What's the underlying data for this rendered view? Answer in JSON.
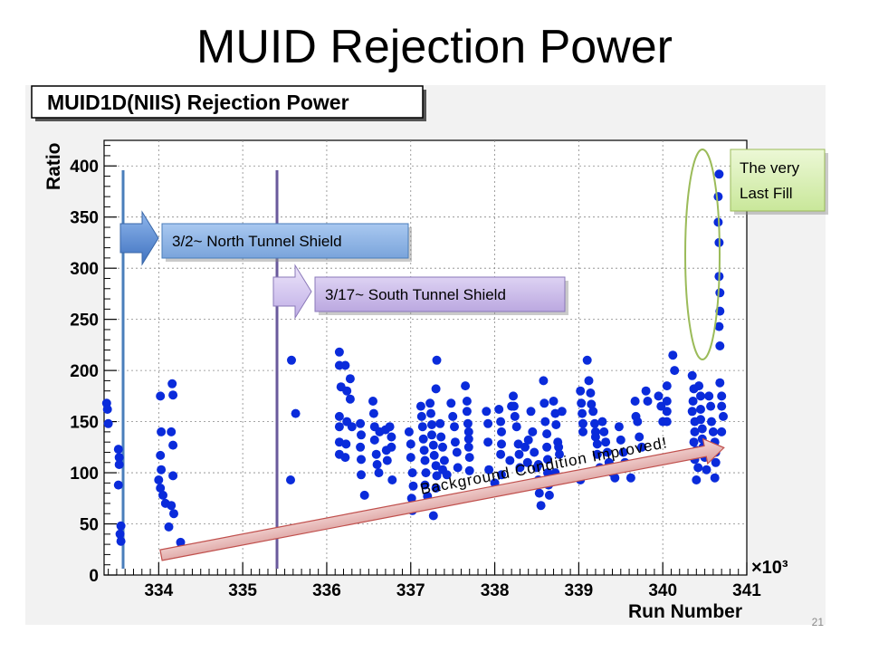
{
  "slide": {
    "title": "MUID Rejection Power",
    "page_number": "21"
  },
  "chart_data": {
    "type": "scatter",
    "title": "MUID1D(NIIS)  Rejection Power",
    "xlabel": "Run Number",
    "ylabel": "Ratio",
    "x_multiplier": "×10³",
    "xlim": [
      333.35,
      341
    ],
    "ylim": [
      0,
      425
    ],
    "x_ticks": [
      334,
      335,
      336,
      337,
      338,
      339,
      340,
      341
    ],
    "y_ticks": [
      0,
      50,
      100,
      150,
      200,
      250,
      300,
      350,
      400
    ],
    "grid": true,
    "marker_color": "#0a2bdb",
    "x_unit_note": "x in thousands of runs",
    "points": [
      [
        333.38,
        168
      ],
      [
        333.39,
        162
      ],
      [
        333.4,
        148
      ],
      [
        333.52,
        123
      ],
      [
        333.53,
        115
      ],
      [
        333.53,
        108
      ],
      [
        333.52,
        88
      ],
      [
        333.55,
        48
      ],
      [
        333.54,
        40
      ],
      [
        333.55,
        33
      ],
      [
        334.02,
        175
      ],
      [
        334.03,
        140
      ],
      [
        334.02,
        117
      ],
      [
        334.03,
        103
      ],
      [
        334.0,
        93
      ],
      [
        334.02,
        85
      ],
      [
        334.05,
        78
      ],
      [
        334.08,
        70
      ],
      [
        334.16,
        187
      ],
      [
        334.17,
        176
      ],
      [
        334.15,
        140
      ],
      [
        334.17,
        127
      ],
      [
        334.17,
        97
      ],
      [
        334.15,
        68
      ],
      [
        334.18,
        60
      ],
      [
        334.12,
        47
      ],
      [
        334.26,
        32
      ],
      [
        334.25,
        25
      ],
      [
        335.58,
        210
      ],
      [
        335.57,
        93
      ],
      [
        335.63,
        158
      ],
      [
        336.15,
        218
      ],
      [
        336.15,
        205
      ],
      [
        336.17,
        184
      ],
      [
        336.15,
        155
      ],
      [
        336.15,
        145
      ],
      [
        336.15,
        130
      ],
      [
        336.15,
        118
      ],
      [
        336.22,
        205
      ],
      [
        336.24,
        180
      ],
      [
        336.24,
        150
      ],
      [
        336.23,
        128
      ],
      [
        336.22,
        115
      ],
      [
        336.28,
        192
      ],
      [
        336.28,
        172
      ],
      [
        336.3,
        145
      ],
      [
        336.4,
        148
      ],
      [
        336.41,
        137
      ],
      [
        336.4,
        125
      ],
      [
        336.41,
        113
      ],
      [
        336.41,
        98
      ],
      [
        336.45,
        78
      ],
      [
        336.55,
        170
      ],
      [
        336.56,
        158
      ],
      [
        336.57,
        145
      ],
      [
        336.57,
        132
      ],
      [
        336.59,
        118
      ],
      [
        336.6,
        108
      ],
      [
        336.62,
        100
      ],
      [
        336.63,
        140
      ],
      [
        336.7,
        142
      ],
      [
        336.71,
        122
      ],
      [
        336.72,
        112
      ],
      [
        336.75,
        145
      ],
      [
        336.77,
        135
      ],
      [
        336.77,
        125
      ],
      [
        336.78,
        93
      ],
      [
        336.98,
        140
      ],
      [
        337.0,
        128
      ],
      [
        337.0,
        115
      ],
      [
        337.02,
        100
      ],
      [
        337.03,
        87
      ],
      [
        337.01,
        75
      ],
      [
        337.02,
        63
      ],
      [
        337.12,
        165
      ],
      [
        337.13,
        155
      ],
      [
        337.14,
        145
      ],
      [
        337.15,
        133
      ],
      [
        337.16,
        122
      ],
      [
        337.17,
        112
      ],
      [
        337.18,
        100
      ],
      [
        337.17,
        88
      ],
      [
        337.2,
        77
      ],
      [
        337.23,
        168
      ],
      [
        337.24,
        158
      ],
      [
        337.25,
        147
      ],
      [
        337.25,
        137
      ],
      [
        337.27,
        127
      ],
      [
        337.28,
        117
      ],
      [
        337.3,
        107
      ],
      [
        337.31,
        97
      ],
      [
        337.3,
        85
      ],
      [
        337.32,
        70
      ],
      [
        337.27,
        58
      ],
      [
        337.3,
        182
      ],
      [
        337.31,
        210
      ],
      [
        337.35,
        148
      ],
      [
        337.36,
        135
      ],
      [
        337.38,
        125
      ],
      [
        337.4,
        112
      ],
      [
        337.38,
        103
      ],
      [
        337.43,
        98
      ],
      [
        337.48,
        168
      ],
      [
        337.5,
        155
      ],
      [
        337.52,
        145
      ],
      [
        337.53,
        130
      ],
      [
        337.55,
        120
      ],
      [
        337.56,
        105
      ],
      [
        337.65,
        185
      ],
      [
        337.67,
        170
      ],
      [
        337.67,
        160
      ],
      [
        337.68,
        148
      ],
      [
        337.69,
        140
      ],
      [
        337.69,
        133
      ],
      [
        337.69,
        125
      ],
      [
        337.7,
        115
      ],
      [
        337.7,
        102
      ],
      [
        337.9,
        160
      ],
      [
        337.92,
        148
      ],
      [
        337.92,
        130
      ],
      [
        337.93,
        103
      ],
      [
        338.0,
        90
      ],
      [
        338.05,
        162
      ],
      [
        338.07,
        150
      ],
      [
        338.08,
        140
      ],
      [
        338.08,
        128
      ],
      [
        338.07,
        118
      ],
      [
        338.08,
        98
      ],
      [
        338.23,
        165
      ],
      [
        338.24,
        155
      ],
      [
        338.26,
        145
      ],
      [
        338.28,
        128
      ],
      [
        338.29,
        118
      ],
      [
        338.3,
        105
      ],
      [
        338.18,
        112
      ],
      [
        338.2,
        165
      ],
      [
        338.22,
        175
      ],
      [
        338.36,
        125
      ],
      [
        338.39,
        110
      ],
      [
        338.4,
        132
      ],
      [
        338.43,
        160
      ],
      [
        338.45,
        140
      ],
      [
        338.47,
        120
      ],
      [
        338.5,
        105
      ],
      [
        338.52,
        108
      ],
      [
        338.52,
        93
      ],
      [
        338.53,
        80
      ],
      [
        338.55,
        68
      ],
      [
        338.58,
        190
      ],
      [
        338.59,
        168
      ],
      [
        338.6,
        150
      ],
      [
        338.62,
        138
      ],
      [
        338.62,
        125
      ],
      [
        338.63,
        113
      ],
      [
        338.63,
        100
      ],
      [
        338.64,
        88
      ],
      [
        338.65,
        78
      ],
      [
        338.7,
        170
      ],
      [
        338.72,
        158
      ],
      [
        338.73,
        147
      ],
      [
        338.75,
        130
      ],
      [
        338.72,
        100
      ],
      [
        338.76,
        125
      ],
      [
        338.77,
        118
      ],
      [
        338.8,
        160
      ],
      [
        338.8,
        95
      ],
      [
        339.02,
        180
      ],
      [
        339.03,
        168
      ],
      [
        339.04,
        158
      ],
      [
        339.05,
        148
      ],
      [
        339.05,
        140
      ],
      [
        339.02,
        93
      ],
      [
        339.1,
        210
      ],
      [
        339.12,
        190
      ],
      [
        339.14,
        178
      ],
      [
        339.15,
        167
      ],
      [
        339.17,
        160
      ],
      [
        339.19,
        148
      ],
      [
        339.2,
        140
      ],
      [
        339.2,
        135
      ],
      [
        339.22,
        128
      ],
      [
        339.22,
        118
      ],
      [
        339.25,
        105
      ],
      [
        339.28,
        150
      ],
      [
        339.3,
        140
      ],
      [
        339.32,
        130
      ],
      [
        339.34,
        120
      ],
      [
        339.36,
        110
      ],
      [
        339.4,
        100
      ],
      [
        339.43,
        95
      ],
      [
        339.48,
        145
      ],
      [
        339.5,
        132
      ],
      [
        339.53,
        120
      ],
      [
        339.55,
        110
      ],
      [
        339.57,
        105
      ],
      [
        339.62,
        95
      ],
      [
        339.67,
        170
      ],
      [
        339.68,
        155
      ],
      [
        339.7,
        150
      ],
      [
        339.72,
        135
      ],
      [
        339.75,
        125
      ],
      [
        339.8,
        180
      ],
      [
        339.82,
        170
      ],
      [
        339.95,
        175
      ],
      [
        339.98,
        165
      ],
      [
        340.0,
        150
      ],
      [
        340.05,
        185
      ],
      [
        340.05,
        170
      ],
      [
        340.05,
        160
      ],
      [
        340.05,
        150
      ],
      [
        340.12,
        215
      ],
      [
        340.14,
        200
      ],
      [
        340.35,
        195
      ],
      [
        340.37,
        182
      ],
      [
        340.36,
        170
      ],
      [
        340.35,
        160
      ],
      [
        340.38,
        150
      ],
      [
        340.38,
        140
      ],
      [
        340.37,
        130
      ],
      [
        340.4,
        122
      ],
      [
        340.38,
        113
      ],
      [
        340.42,
        105
      ],
      [
        340.4,
        93
      ],
      [
        340.43,
        185
      ],
      [
        340.45,
        175
      ],
      [
        340.45,
        162
      ],
      [
        340.45,
        152
      ],
      [
        340.47,
        143
      ],
      [
        340.47,
        133
      ],
      [
        340.48,
        125
      ],
      [
        340.5,
        115
      ],
      [
        340.52,
        103
      ],
      [
        340.55,
        175
      ],
      [
        340.57,
        165
      ],
      [
        340.58,
        150
      ],
      [
        340.6,
        140
      ],
      [
        340.62,
        130
      ],
      [
        340.63,
        120
      ],
      [
        340.63,
        110
      ],
      [
        340.62,
        95
      ],
      [
        340.68,
        188
      ],
      [
        340.7,
        175
      ],
      [
        340.7,
        165
      ],
      [
        340.72,
        155
      ],
      [
        340.7,
        140
      ],
      [
        340.67,
        392
      ],
      [
        340.66,
        370
      ],
      [
        340.66,
        345
      ],
      [
        340.67,
        325
      ],
      [
        340.67,
        292
      ],
      [
        340.68,
        276
      ],
      [
        340.68,
        258
      ],
      [
        340.67,
        243
      ],
      [
        340.68,
        224
      ]
    ],
    "annotations": [
      {
        "type": "vertical_line",
        "x": 333.52,
        "color": "#4a7ebb"
      },
      {
        "type": "vertical_line",
        "x": 335.45,
        "color": "#6a5a9c"
      },
      {
        "type": "callout",
        "text": "3/2~  North Tunnel Shield",
        "fill": "#8db3e2"
      },
      {
        "type": "callout",
        "text": "3/17~ South Tunnel Shield",
        "fill": "#c9b8e8"
      },
      {
        "type": "callout",
        "text": "The very Last Fill",
        "fill": "#d7f0b0"
      },
      {
        "type": "arrow",
        "text": "Background Condition Improved!",
        "fill": "#e6b9b8"
      },
      {
        "type": "ellipse",
        "around": "last-fill-points",
        "color": "#9bbb59"
      }
    ]
  },
  "callouts": {
    "north": "3/2~  North Tunnel Shield",
    "south": "3/17~ South Tunnel Shield",
    "last_fill_line1": "The very",
    "last_fill_line2": "Last Fill",
    "trend": "Background Condition Improved!"
  }
}
